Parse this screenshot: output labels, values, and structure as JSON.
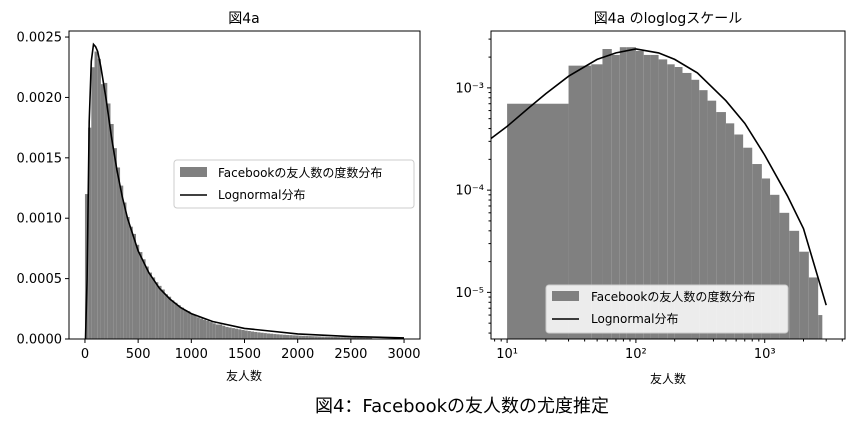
{
  "figure": {
    "caption": "図4：Facebookの友人数の尤度推定"
  },
  "colors": {
    "bar": "#808080",
    "line": "#000000",
    "frame": "#000000",
    "legend_bg": "#ffffff"
  },
  "chart_data": [
    {
      "type": "bar",
      "title": "図4a",
      "xlabel": "友人数",
      "ylabel": "",
      "xlim": [
        -150,
        3150
      ],
      "ylim": [
        0,
        0.00255
      ],
      "x_ticks": [
        0,
        500,
        1000,
        1500,
        2000,
        2500,
        3000
      ],
      "x_tick_labels": [
        "0",
        "500",
        "1000",
        "1500",
        "2000",
        "2500",
        "3000"
      ],
      "y_ticks": [
        0,
        0.0005,
        0.001,
        0.0015,
        0.002,
        0.0025
      ],
      "y_tick_labels": [
        "0.0000",
        "0.0005",
        "0.0010",
        "0.0015",
        "0.0020",
        "0.0025"
      ],
      "grid": false,
      "legend": {
        "position": "center-right",
        "entries": [
          "Facebookの友人数の度数分布",
          "Lognormal分布"
        ]
      },
      "series": [
        {
          "name": "Facebookの友人数の度数分布",
          "kind": "histogram",
          "bin_width": 30,
          "x_start": 0,
          "values": [
            0.0012,
            0.00175,
            0.00225,
            0.00238,
            0.00232,
            0.00211,
            0.00212,
            0.00195,
            0.00178,
            0.00158,
            0.00142,
            0.00127,
            0.00113,
            0.00101,
            0.00093,
            0.00087,
            0.00078,
            0.00072,
            0.00066,
            0.0006,
            0.00055,
            0.00051,
            0.00047,
            0.00044,
            0.00041,
            0.00037,
            0.00035,
            0.00032,
            0.0003,
            0.00028,
            0.00026,
            0.00024,
            0.00023,
            0.00021,
            0.0002,
            0.00018,
            0.00017,
            0.00016,
            0.00015,
            0.00014,
            0.00013,
            0.00012,
            0.00012,
            0.00011,
            0.0001,
            9.5e-05,
            9e-05,
            8.5e-05,
            8e-05,
            7.5e-05,
            7e-05,
            6.6e-05,
            6.2e-05,
            5.8e-05,
            5.5e-05,
            5.2e-05,
            4.9e-05,
            4.6e-05,
            4.4e-05,
            4.1e-05,
            3.9e-05,
            3.7e-05,
            3.5e-05,
            3.3e-05,
            3.2e-05,
            3e-05,
            2.9e-05,
            2.7e-05,
            2.6e-05,
            2.5e-05,
            2.4e-05,
            2.3e-05,
            2.2e-05,
            2.1e-05,
            2e-05,
            1.9e-05,
            1.8e-05,
            1.7e-05,
            1.7e-05,
            1.6e-05,
            1.5e-05,
            1.5e-05,
            1.4e-05,
            1.3e-05,
            1.3e-05,
            1.2e-05,
            1.2e-05,
            1.1e-05,
            1.1e-05,
            1e-05
          ]
        },
        {
          "name": "Lognormal分布",
          "kind": "line",
          "x": [
            5,
            20,
            40,
            60,
            80,
            100,
            120,
            150,
            200,
            250,
            300,
            350,
            400,
            500,
            600,
            700,
            800,
            900,
            1000,
            1200,
            1500,
            2000,
            2500,
            3000
          ],
          "y": [
            0.0,
            0.0005,
            0.0018,
            0.0023,
            0.00244,
            0.00242,
            0.00238,
            0.00225,
            0.00198,
            0.00167,
            0.0014,
            0.00118,
            0.001,
            0.00073,
            0.00055,
            0.00042,
            0.00033,
            0.00026,
            0.00021,
            0.000145,
            8.8e-05,
            4.2e-05,
            2e-05,
            9e-06
          ]
        }
      ]
    },
    {
      "type": "bar",
      "title": "図4a のloglogスケール",
      "xlabel": "友人数",
      "ylabel": "",
      "x_scale": "log",
      "y_scale": "log",
      "xlim": [
        7.5,
        4200
      ],
      "ylim": [
        3.5e-06,
        0.0036
      ],
      "x_tick_labels": [
        "10¹",
        "10²",
        "10³"
      ],
      "y_tick_labels": [
        "10⁻⁵",
        "10⁻⁴",
        "10⁻³"
      ],
      "grid": false,
      "legend": {
        "position": "lower-center",
        "entries": [
          "Facebookの友人数の度数分布",
          "Lognormal分布"
        ]
      },
      "series": [
        {
          "name": "Facebookの友人数の度数分布",
          "kind": "histogram",
          "bins": [
            {
              "x0": 10,
              "x1": 30,
              "y": 0.0007
            },
            {
              "x0": 30,
              "x1": 45,
              "y": 0.00165
            },
            {
              "x0": 45,
              "x1": 55,
              "y": 0.0017
            },
            {
              "x0": 55,
              "x1": 65,
              "y": 0.0024
            },
            {
              "x0": 65,
              "x1": 75,
              "y": 0.0021
            },
            {
              "x0": 75,
              "x1": 85,
              "y": 0.0025
            },
            {
              "x0": 85,
              "x1": 100,
              "y": 0.0025
            },
            {
              "x0": 100,
              "x1": 115,
              "y": 0.0023
            },
            {
              "x0": 115,
              "x1": 130,
              "y": 0.0021
            },
            {
              "x0": 130,
              "x1": 150,
              "y": 0.0021
            },
            {
              "x0": 150,
              "x1": 175,
              "y": 0.0019
            },
            {
              "x0": 175,
              "x1": 200,
              "y": 0.0017
            },
            {
              "x0": 200,
              "x1": 230,
              "y": 0.0016
            },
            {
              "x0": 230,
              "x1": 270,
              "y": 0.0014
            },
            {
              "x0": 270,
              "x1": 310,
              "y": 0.0012
            },
            {
              "x0": 310,
              "x1": 360,
              "y": 0.00095
            },
            {
              "x0": 360,
              "x1": 420,
              "y": 0.00075
            },
            {
              "x0": 420,
              "x1": 500,
              "y": 0.00058
            },
            {
              "x0": 500,
              "x1": 580,
              "y": 0.00045
            },
            {
              "x0": 580,
              "x1": 680,
              "y": 0.00035
            },
            {
              "x0": 680,
              "x1": 800,
              "y": 0.00026
            },
            {
              "x0": 800,
              "x1": 950,
              "y": 0.00018
            },
            {
              "x0": 950,
              "x1": 1100,
              "y": 0.00013
            },
            {
              "x0": 1100,
              "x1": 1300,
              "y": 9e-05
            },
            {
              "x0": 1300,
              "x1": 1550,
              "y": 6e-05
            },
            {
              "x0": 1550,
              "x1": 1850,
              "y": 4e-05
            },
            {
              "x0": 1850,
              "x1": 2200,
              "y": 2.5e-05
            },
            {
              "x0": 2200,
              "x1": 2600,
              "y": 1.4e-05
            },
            {
              "x0": 2600,
              "x1": 2800,
              "y": 6e-06
            }
          ]
        },
        {
          "name": "Lognormal分布",
          "kind": "line",
          "x": [
            7.5,
            10,
            15,
            20,
            30,
            50,
            70,
            100,
            150,
            200,
            300,
            500,
            700,
            1000,
            1500,
            2000,
            3000
          ],
          "y": [
            0.00032,
            0.00042,
            0.00065,
            0.00088,
            0.0013,
            0.0019,
            0.0022,
            0.0024,
            0.0022,
            0.0019,
            0.0014,
            0.00075,
            0.00045,
            0.00022,
            8.8e-05,
            4.2e-05,
            7.5e-06
          ]
        }
      ]
    }
  ]
}
